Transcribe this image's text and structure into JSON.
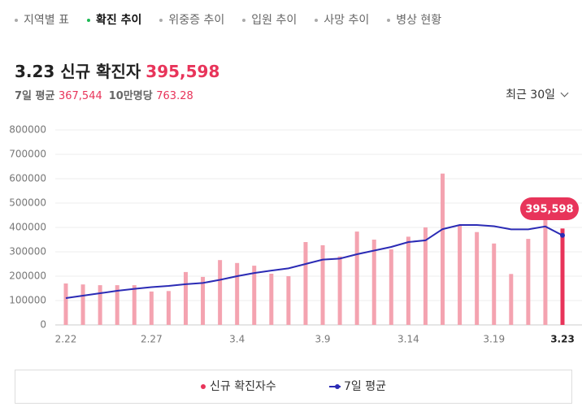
{
  "nav": {
    "tabs": [
      "지역별 표",
      "확진 추이",
      "위중증 추이",
      "입원 추이",
      "사망 추이",
      "병상 현황"
    ],
    "active": 1
  },
  "header": {
    "title": "3.23 신규 확진자",
    "count": "395,598",
    "avg_label": "7일 평균",
    "avg_value": "367,544",
    "per_label": "10만명당",
    "per_value": "763.28",
    "period": "최근 30일"
  },
  "chart_data": {
    "type": "bar",
    "categories": [
      "2.22",
      null,
      null,
      null,
      null,
      "2.27",
      null,
      null,
      null,
      null,
      "3.4",
      null,
      null,
      null,
      null,
      "3.9",
      null,
      null,
      null,
      null,
      "3.14",
      null,
      null,
      null,
      null,
      "3.19",
      null,
      null,
      null,
      "3.23"
    ],
    "series": [
      {
        "name": "신규 확진자수",
        "type": "bar",
        "color": "#f4a3b0",
        "highlight_color": "#e8345a",
        "values": [
          170000,
          166000,
          163000,
          163000,
          163000,
          137000,
          139000,
          217000,
          197000,
          266000,
          254000,
          243000,
          210000,
          200000,
          340000,
          327000,
          281000,
          383000,
          350000,
          310000,
          362000,
          400000,
          621000,
          407000,
          381000,
          334000,
          209000,
          353000,
          490881,
          395598
        ],
        "value_labels": [
          null,
          null,
          null,
          null,
          null,
          null,
          null,
          null,
          null,
          null,
          null,
          null,
          null,
          null,
          null,
          null,
          null,
          null,
          null,
          null,
          null,
          null,
          null,
          null,
          null,
          null,
          null,
          null,
          null,
          "395,598"
        ]
      },
      {
        "name": "7일 평균",
        "type": "line",
        "color": "#2b2bb5",
        "values": [
          110000,
          120000,
          130000,
          140000,
          148000,
          155000,
          160000,
          167000,
          172000,
          185000,
          200000,
          213000,
          223000,
          232000,
          250000,
          268000,
          272000,
          290000,
          305000,
          320000,
          340000,
          347000,
          393000,
          410000,
          410000,
          405000,
          392000,
          392000,
          404000,
          367544
        ]
      }
    ],
    "ylim": [
      0,
      800000
    ],
    "yticks": [
      0,
      100000,
      200000,
      300000,
      400000,
      500000,
      600000,
      700000,
      800000
    ],
    "grid": true
  }
}
